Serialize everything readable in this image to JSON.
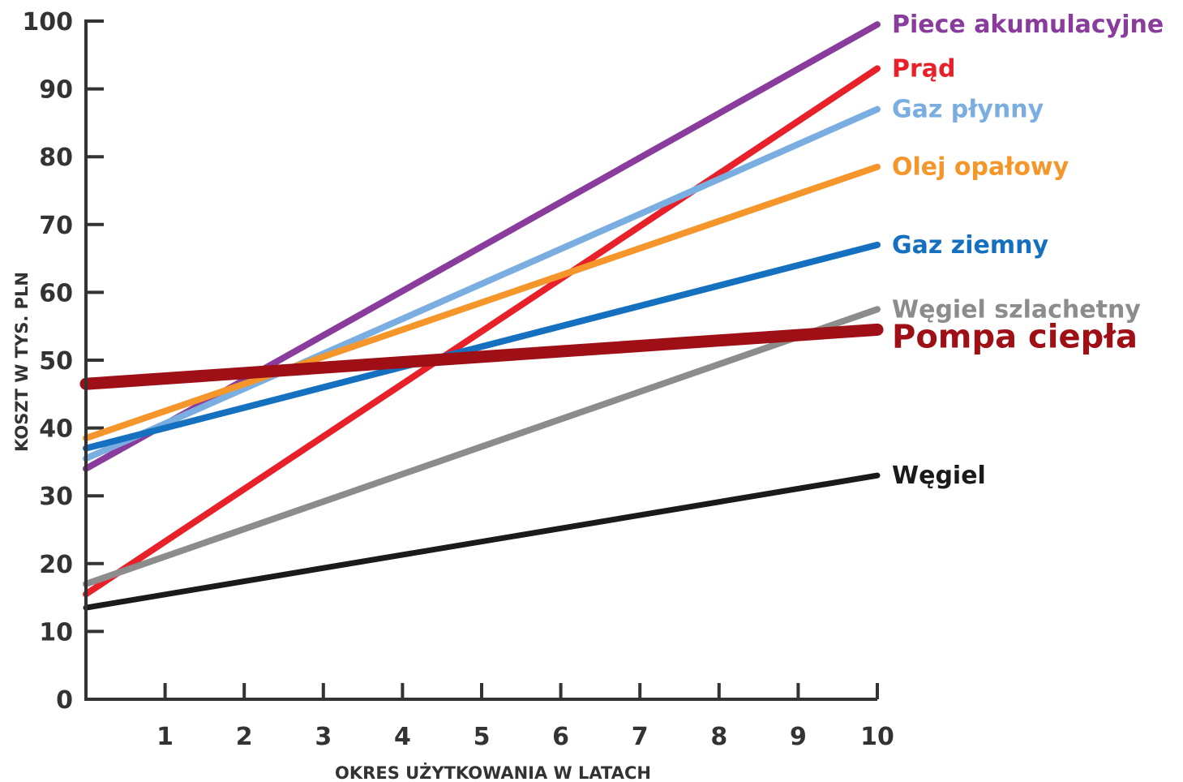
{
  "chart_data": {
    "type": "line",
    "title": "",
    "xlabel": "OKRES UŻYTKOWANIA W LATACH",
    "ylabel": "KOSZT W TYS. PLN",
    "x": [
      0,
      10
    ],
    "xlim": [
      0,
      10
    ],
    "ylim": [
      0,
      100
    ],
    "x_ticks": [
      "1",
      "2",
      "3",
      "4",
      "5",
      "6",
      "7",
      "8",
      "9",
      "10"
    ],
    "y_ticks": [
      "0",
      "10",
      "20",
      "30",
      "40",
      "50",
      "60",
      "70",
      "80",
      "90",
      "100"
    ],
    "grid": false,
    "legend": "right",
    "series": [
      {
        "name": "Piece akumulacyjne",
        "color": "#8a3c9c",
        "values": [
          34,
          99.5
        ]
      },
      {
        "name": "Prąd",
        "color": "#e8202a",
        "values": [
          15.5,
          93
        ]
      },
      {
        "name": "Gaz płynny",
        "color": "#7aaee0",
        "values": [
          35.5,
          87
        ]
      },
      {
        "name": "Olej opałowy",
        "color": "#f5962a",
        "values": [
          38.5,
          78.5
        ]
      },
      {
        "name": "Gaz ziemny",
        "color": "#1670c0",
        "values": [
          37,
          67
        ]
      },
      {
        "name": "Węgiel szlachetny",
        "color": "#8c8c8c",
        "values": [
          17,
          57.5
        ]
      },
      {
        "name": "Pompa ciepła",
        "color": "#9e0f16",
        "values": [
          46.5,
          54.5
        ]
      },
      {
        "name": "Węgiel",
        "color": "#1a1a1a",
        "values": [
          13.5,
          33
        ]
      }
    ]
  }
}
